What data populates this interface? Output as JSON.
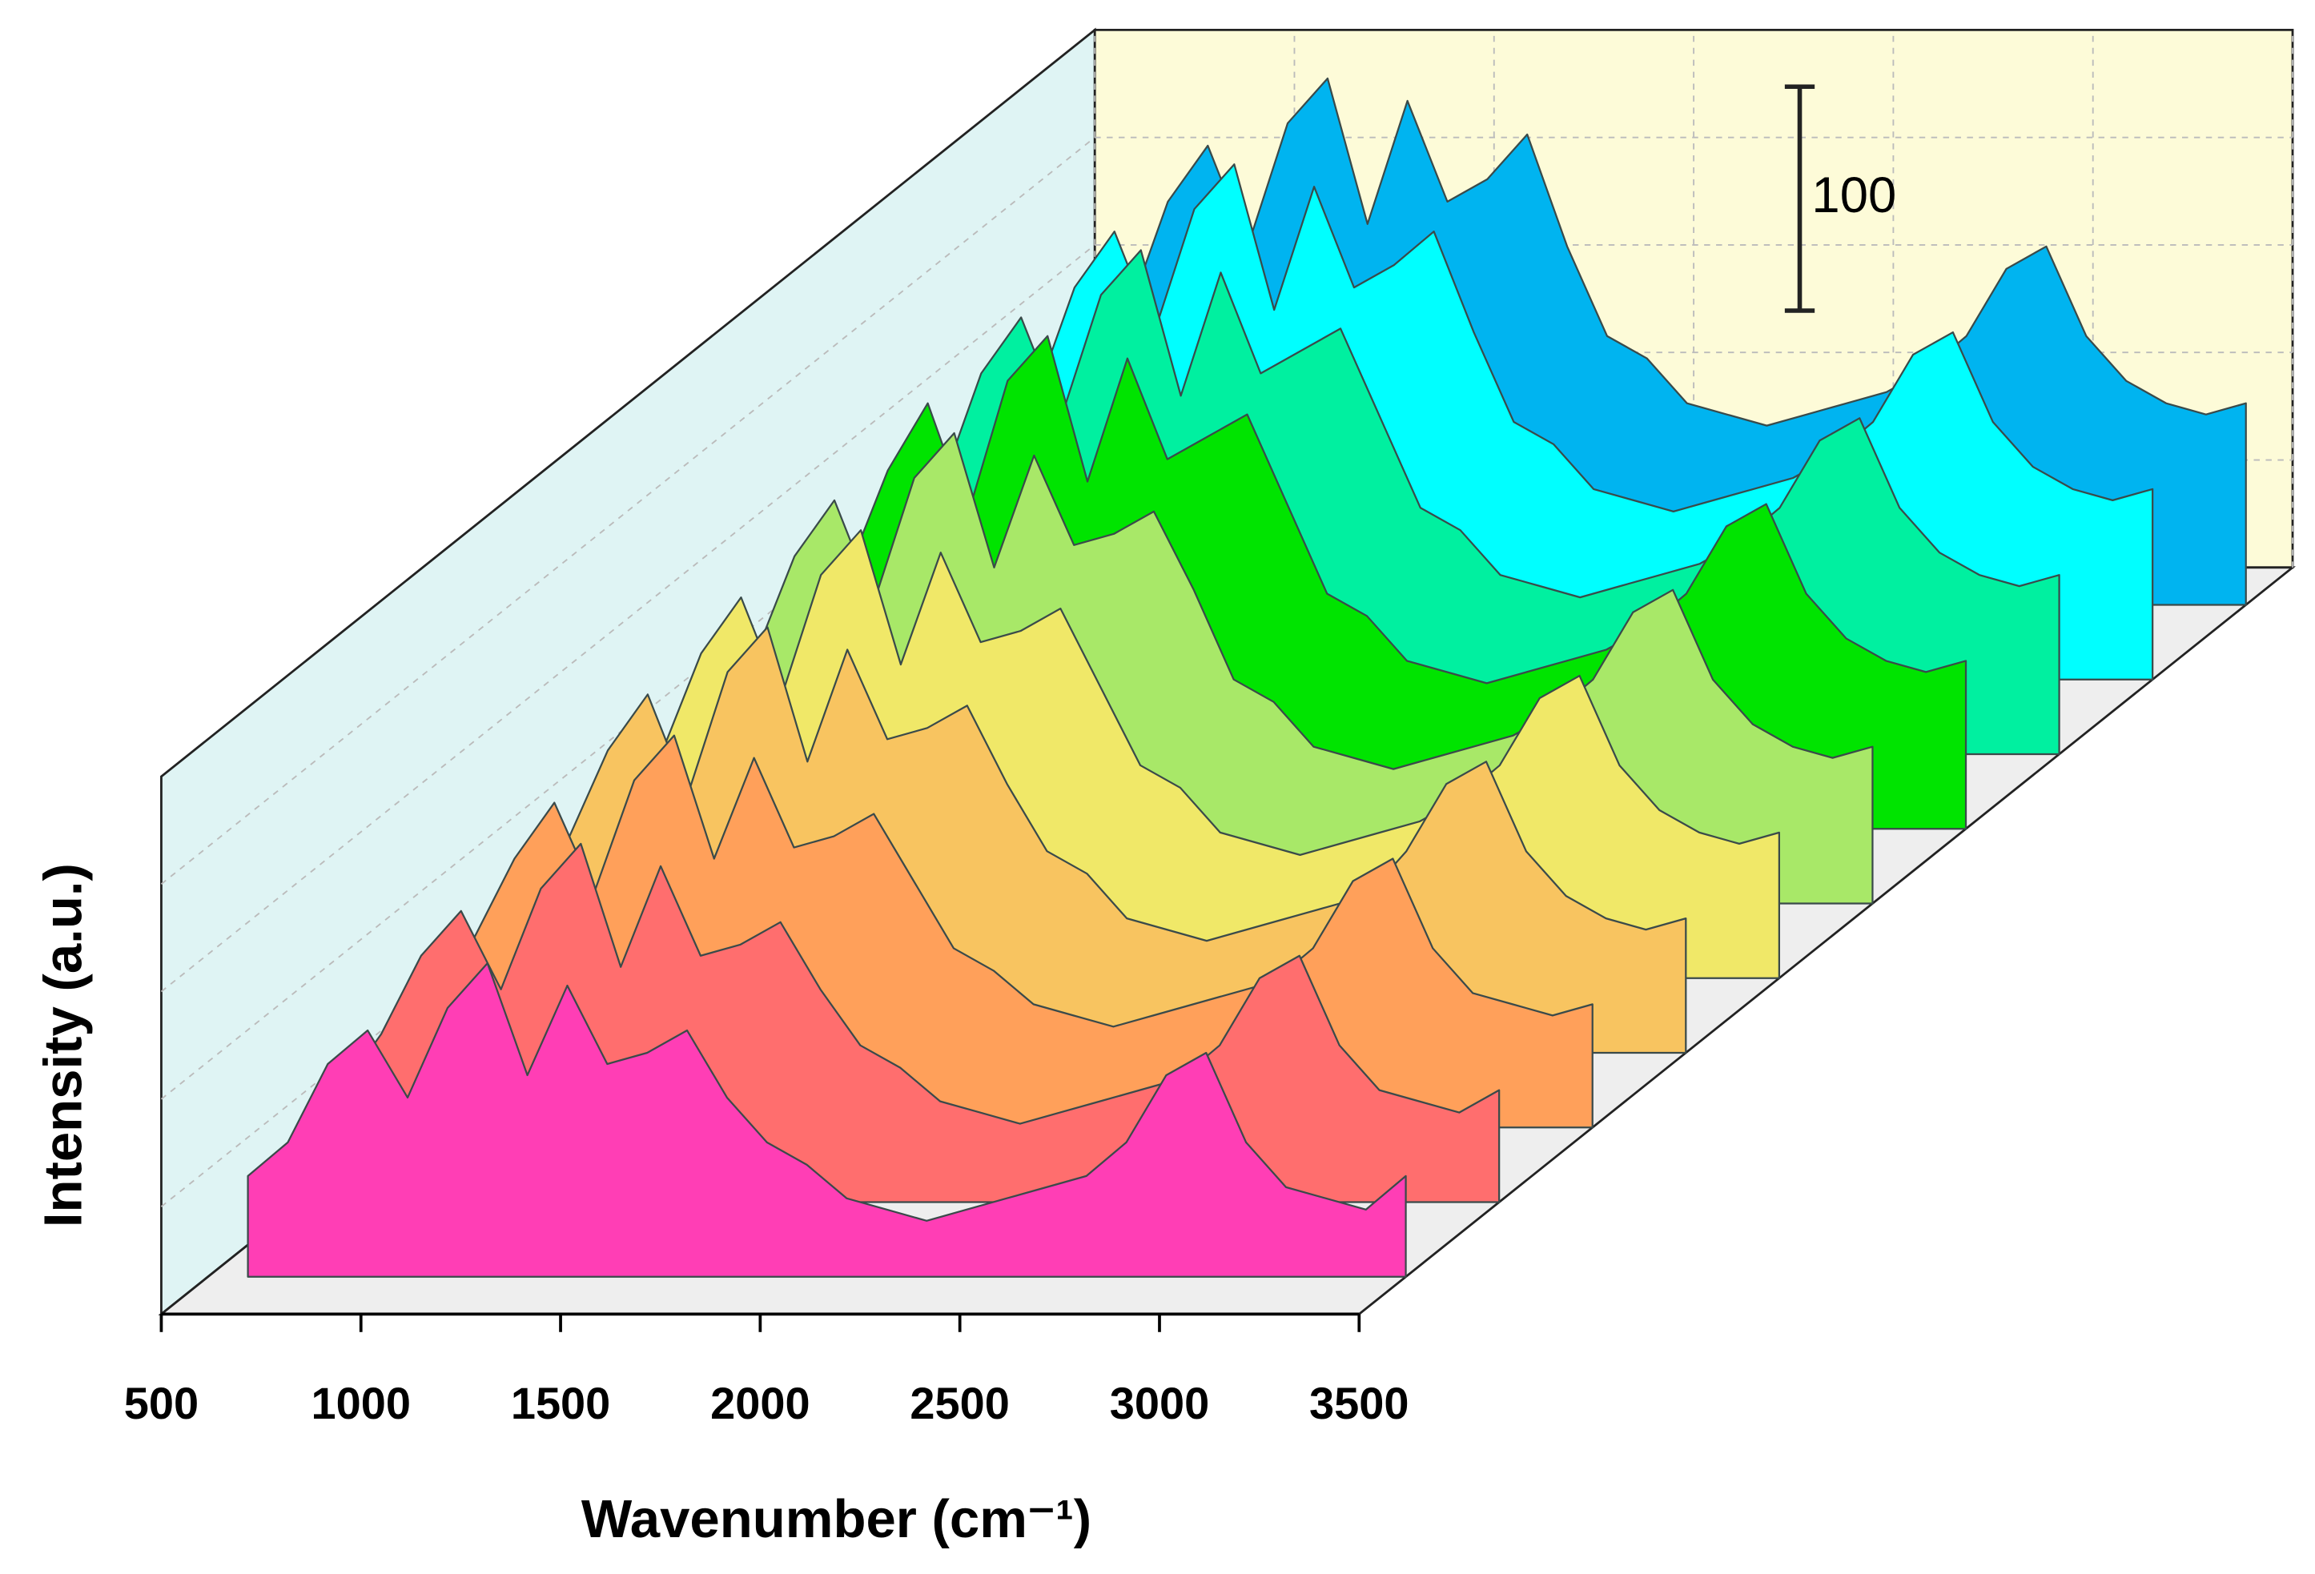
{
  "chart_data": {
    "type": "waterfall",
    "xlabel": "Wavenumber (cm⁻¹)",
    "ylabel": "Intensity (a.u.)",
    "xlim": [
      500,
      3500
    ],
    "xticks": [
      500,
      1000,
      1500,
      2000,
      2500,
      3000,
      3500
    ],
    "ylim": [
      0,
      240
    ],
    "scale_bar": {
      "value": 100
    },
    "x": [
      600,
      700,
      800,
      900,
      1000,
      1100,
      1200,
      1300,
      1400,
      1500,
      1600,
      1700,
      1800,
      1900,
      2000,
      2100,
      2200,
      2300,
      2400,
      2500,
      2600,
      2700,
      2800,
      2900,
      3000,
      3100,
      3200,
      3300,
      3400,
      3500
    ],
    "series": [
      {
        "color": "#ff3eb5",
        "values": [
          45,
          60,
          95,
          110,
          80,
          120,
          140,
          90,
          130,
          95,
          100,
          110,
          80,
          60,
          50,
          35,
          30,
          25,
          30,
          35,
          40,
          45,
          60,
          90,
          100,
          60,
          40,
          35,
          30,
          45
        ]
      },
      {
        "color": "#ff6e6e",
        "values": [
          50,
          75,
          110,
          130,
          95,
          140,
          160,
          105,
          150,
          110,
          115,
          125,
          95,
          70,
          60,
          45,
          40,
          35,
          40,
          45,
          50,
          55,
          70,
          100,
          110,
          70,
          50,
          45,
          40,
          50
        ]
      },
      {
        "color": "#ffa05a",
        "values": [
          55,
          85,
          120,
          145,
          105,
          155,
          175,
          120,
          165,
          125,
          130,
          140,
          110,
          80,
          70,
          55,
          50,
          45,
          50,
          55,
          60,
          65,
          80,
          110,
          120,
          80,
          60,
          55,
          50,
          55
        ]
      },
      {
        "color": "#f8c460",
        "values": [
          60,
          95,
          135,
          160,
          115,
          170,
          190,
          130,
          180,
          140,
          145,
          155,
          120,
          90,
          80,
          60,
          55,
          50,
          55,
          60,
          65,
          70,
          90,
          120,
          130,
          90,
          70,
          60,
          55,
          60
        ]
      },
      {
        "color": "#f0e868",
        "values": [
          60,
          100,
          145,
          170,
          125,
          180,
          200,
          140,
          190,
          150,
          155,
          165,
          130,
          95,
          85,
          65,
          60,
          55,
          60,
          65,
          70,
          80,
          95,
          125,
          135,
          95,
          75,
          65,
          60,
          65
        ]
      },
      {
        "color": "#a8e868",
        "values": [
          65,
          110,
          155,
          180,
          135,
          190,
          210,
          150,
          200,
          160,
          165,
          175,
          140,
          100,
          90,
          70,
          65,
          60,
          65,
          70,
          75,
          85,
          100,
          130,
          140,
          100,
          80,
          70,
          65,
          70
        ]
      },
      {
        "color": "#00e400",
        "values": [
          70,
          115,
          160,
          190,
          140,
          200,
          220,
          155,
          210,
          165,
          175,
          185,
          145,
          105,
          95,
          75,
          70,
          65,
          70,
          75,
          80,
          90,
          105,
          135,
          145,
          105,
          85,
          75,
          70,
          75
        ]
      },
      {
        "color": "#00f0a0",
        "values": [
          75,
          120,
          170,
          195,
          150,
          205,
          225,
          160,
          215,
          170,
          180,
          190,
          150,
          110,
          100,
          80,
          75,
          70,
          75,
          80,
          85,
          95,
          110,
          140,
          150,
          110,
          90,
          80,
          75,
          80
        ]
      },
      {
        "color": "#00ffff",
        "values": [
          80,
          125,
          175,
          200,
          155,
          210,
          230,
          165,
          220,
          175,
          185,
          200,
          155,
          115,
          105,
          85,
          80,
          75,
          80,
          85,
          90,
          100,
          115,
          145,
          155,
          115,
          95,
          85,
          80,
          85
        ]
      },
      {
        "color": "#00b4f0",
        "values": [
          85,
          130,
          180,
          205,
          160,
          215,
          235,
          170,
          225,
          180,
          190,
          210,
          160,
          120,
          110,
          90,
          85,
          80,
          85,
          90,
          95,
          105,
          120,
          150,
          160,
          120,
          100,
          90,
          85,
          90
        ]
      }
    ]
  }
}
